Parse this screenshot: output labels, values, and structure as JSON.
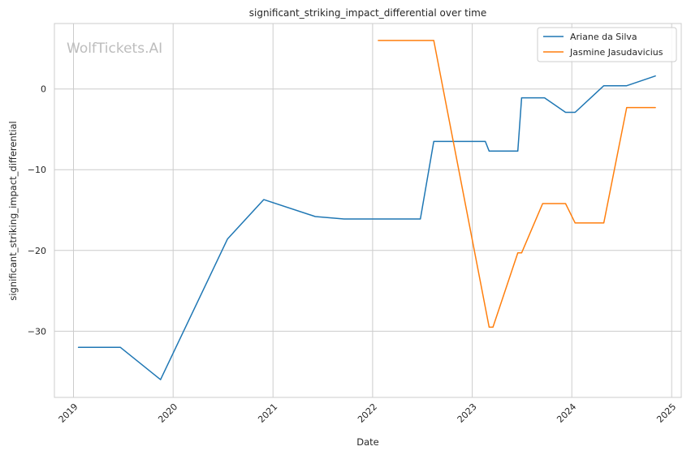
{
  "chart_data": {
    "type": "line",
    "title": "significant_striking_impact_differential over time",
    "xlabel": "Date",
    "ylabel": "significant_striking_impact_differential",
    "watermark": "WolfTickets.AI",
    "xlim": [
      "2018-10-23",
      "2025-02-05"
    ],
    "ylim": [
      -38.2,
      8.1
    ],
    "x_ticks": [
      "2019-01-01",
      "2020-01-01",
      "2021-01-01",
      "2022-01-01",
      "2023-01-01",
      "2024-01-01",
      "2025-01-01"
    ],
    "x_tick_labels": [
      "2019",
      "2020",
      "2021",
      "2022",
      "2023",
      "2024",
      "2025"
    ],
    "y_ticks": [
      0,
      -10,
      -20,
      -30
    ],
    "y_tick_labels": [
      "0",
      "−10",
      "−20",
      "−30"
    ],
    "grid": true,
    "legend_position": "top-right",
    "series": [
      {
        "name": "Ariane da Silva",
        "color": "#1f77b4",
        "points": [
          [
            "2019-01-19",
            -32.0
          ],
          [
            "2019-06-22",
            -32.0
          ],
          [
            "2019-11-16",
            -36.0
          ],
          [
            "2020-07-18",
            -18.6
          ],
          [
            "2020-11-28",
            -13.7
          ],
          [
            "2021-06-05",
            -15.8
          ],
          [
            "2021-09-18",
            -16.1
          ],
          [
            "2022-06-25",
            -16.1
          ],
          [
            "2022-08-13",
            -6.5
          ],
          [
            "2023-02-18",
            -6.5
          ],
          [
            "2023-03-04",
            -7.7
          ],
          [
            "2023-06-17",
            -7.7
          ],
          [
            "2023-07-01",
            -1.1
          ],
          [
            "2023-09-23",
            -1.1
          ],
          [
            "2023-12-09",
            -2.9
          ],
          [
            "2024-01-13",
            -2.9
          ],
          [
            "2024-04-27",
            0.4
          ],
          [
            "2024-07-20",
            0.4
          ],
          [
            "2024-11-02",
            1.6
          ]
        ]
      },
      {
        "name": "Jasmine Jasudavicius",
        "color": "#ff7f0e",
        "points": [
          [
            "2022-01-22",
            6.0
          ],
          [
            "2022-08-13",
            6.0
          ],
          [
            "2023-03-04",
            -29.5
          ],
          [
            "2023-03-18",
            -29.5
          ],
          [
            "2023-06-17",
            -20.3
          ],
          [
            "2023-07-01",
            -20.3
          ],
          [
            "2023-09-16",
            -14.2
          ],
          [
            "2023-12-09",
            -14.2
          ],
          [
            "2024-01-13",
            -16.6
          ],
          [
            "2024-04-27",
            -16.6
          ],
          [
            "2024-07-20",
            -2.3
          ],
          [
            "2024-11-02",
            -2.3
          ]
        ]
      }
    ]
  }
}
